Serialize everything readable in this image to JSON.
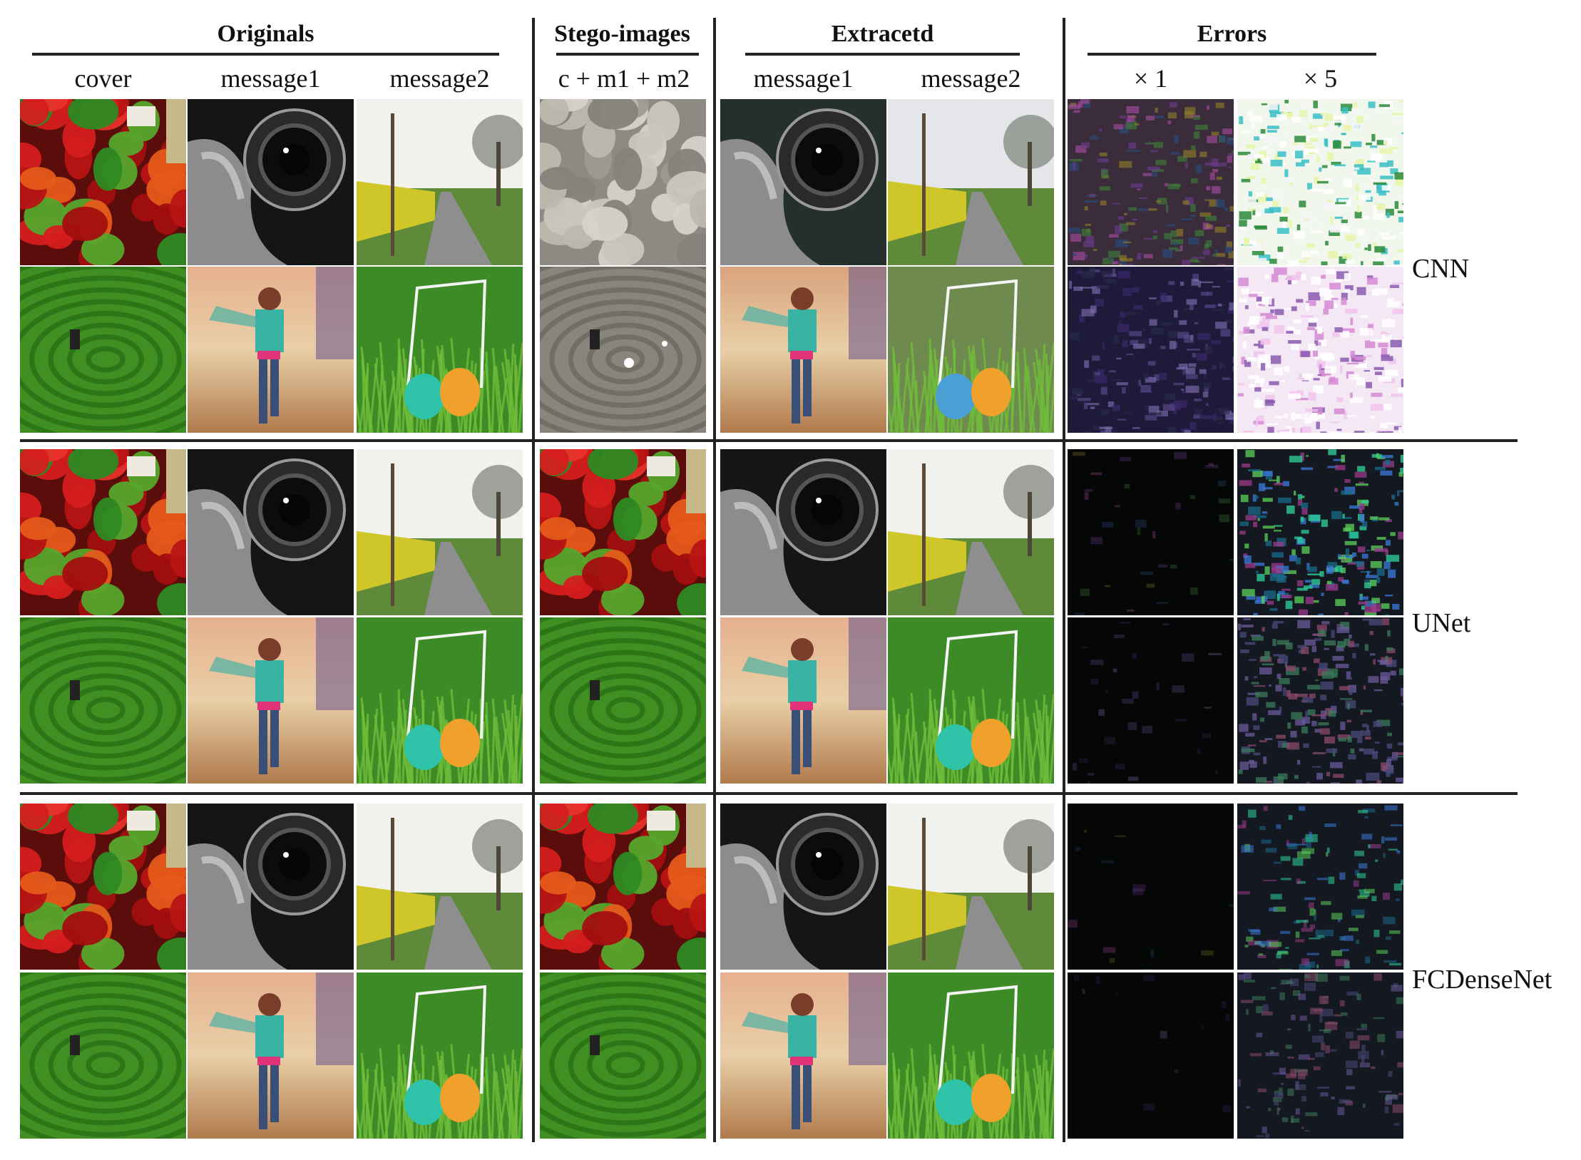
{
  "headers": {
    "originals": "Originals",
    "stego": "Stego-images",
    "extracted": "Extracetd",
    "errors": "Errors"
  },
  "subheaders": {
    "cover": "cover",
    "message1": "message1",
    "message2": "message2",
    "stego_combo": "c + m1 + m2",
    "ext_message1": "message1",
    "ext_message2": "message2",
    "err_x1": "× 1",
    "err_x5": "× 5"
  },
  "row_labels": {
    "cnn": "CNN",
    "unet": "UNet",
    "fcdensenet": "FCDenseNet"
  },
  "image_contents": {
    "cover_top": "peppers",
    "cover_bottom": "grass-maze",
    "message1_top": "camera",
    "message1_bottom": "girl",
    "message2_top": "road",
    "message2_bottom": "eggs"
  },
  "colors": {
    "rule": "#222222",
    "text": "#111111",
    "background": "#ffffff"
  }
}
